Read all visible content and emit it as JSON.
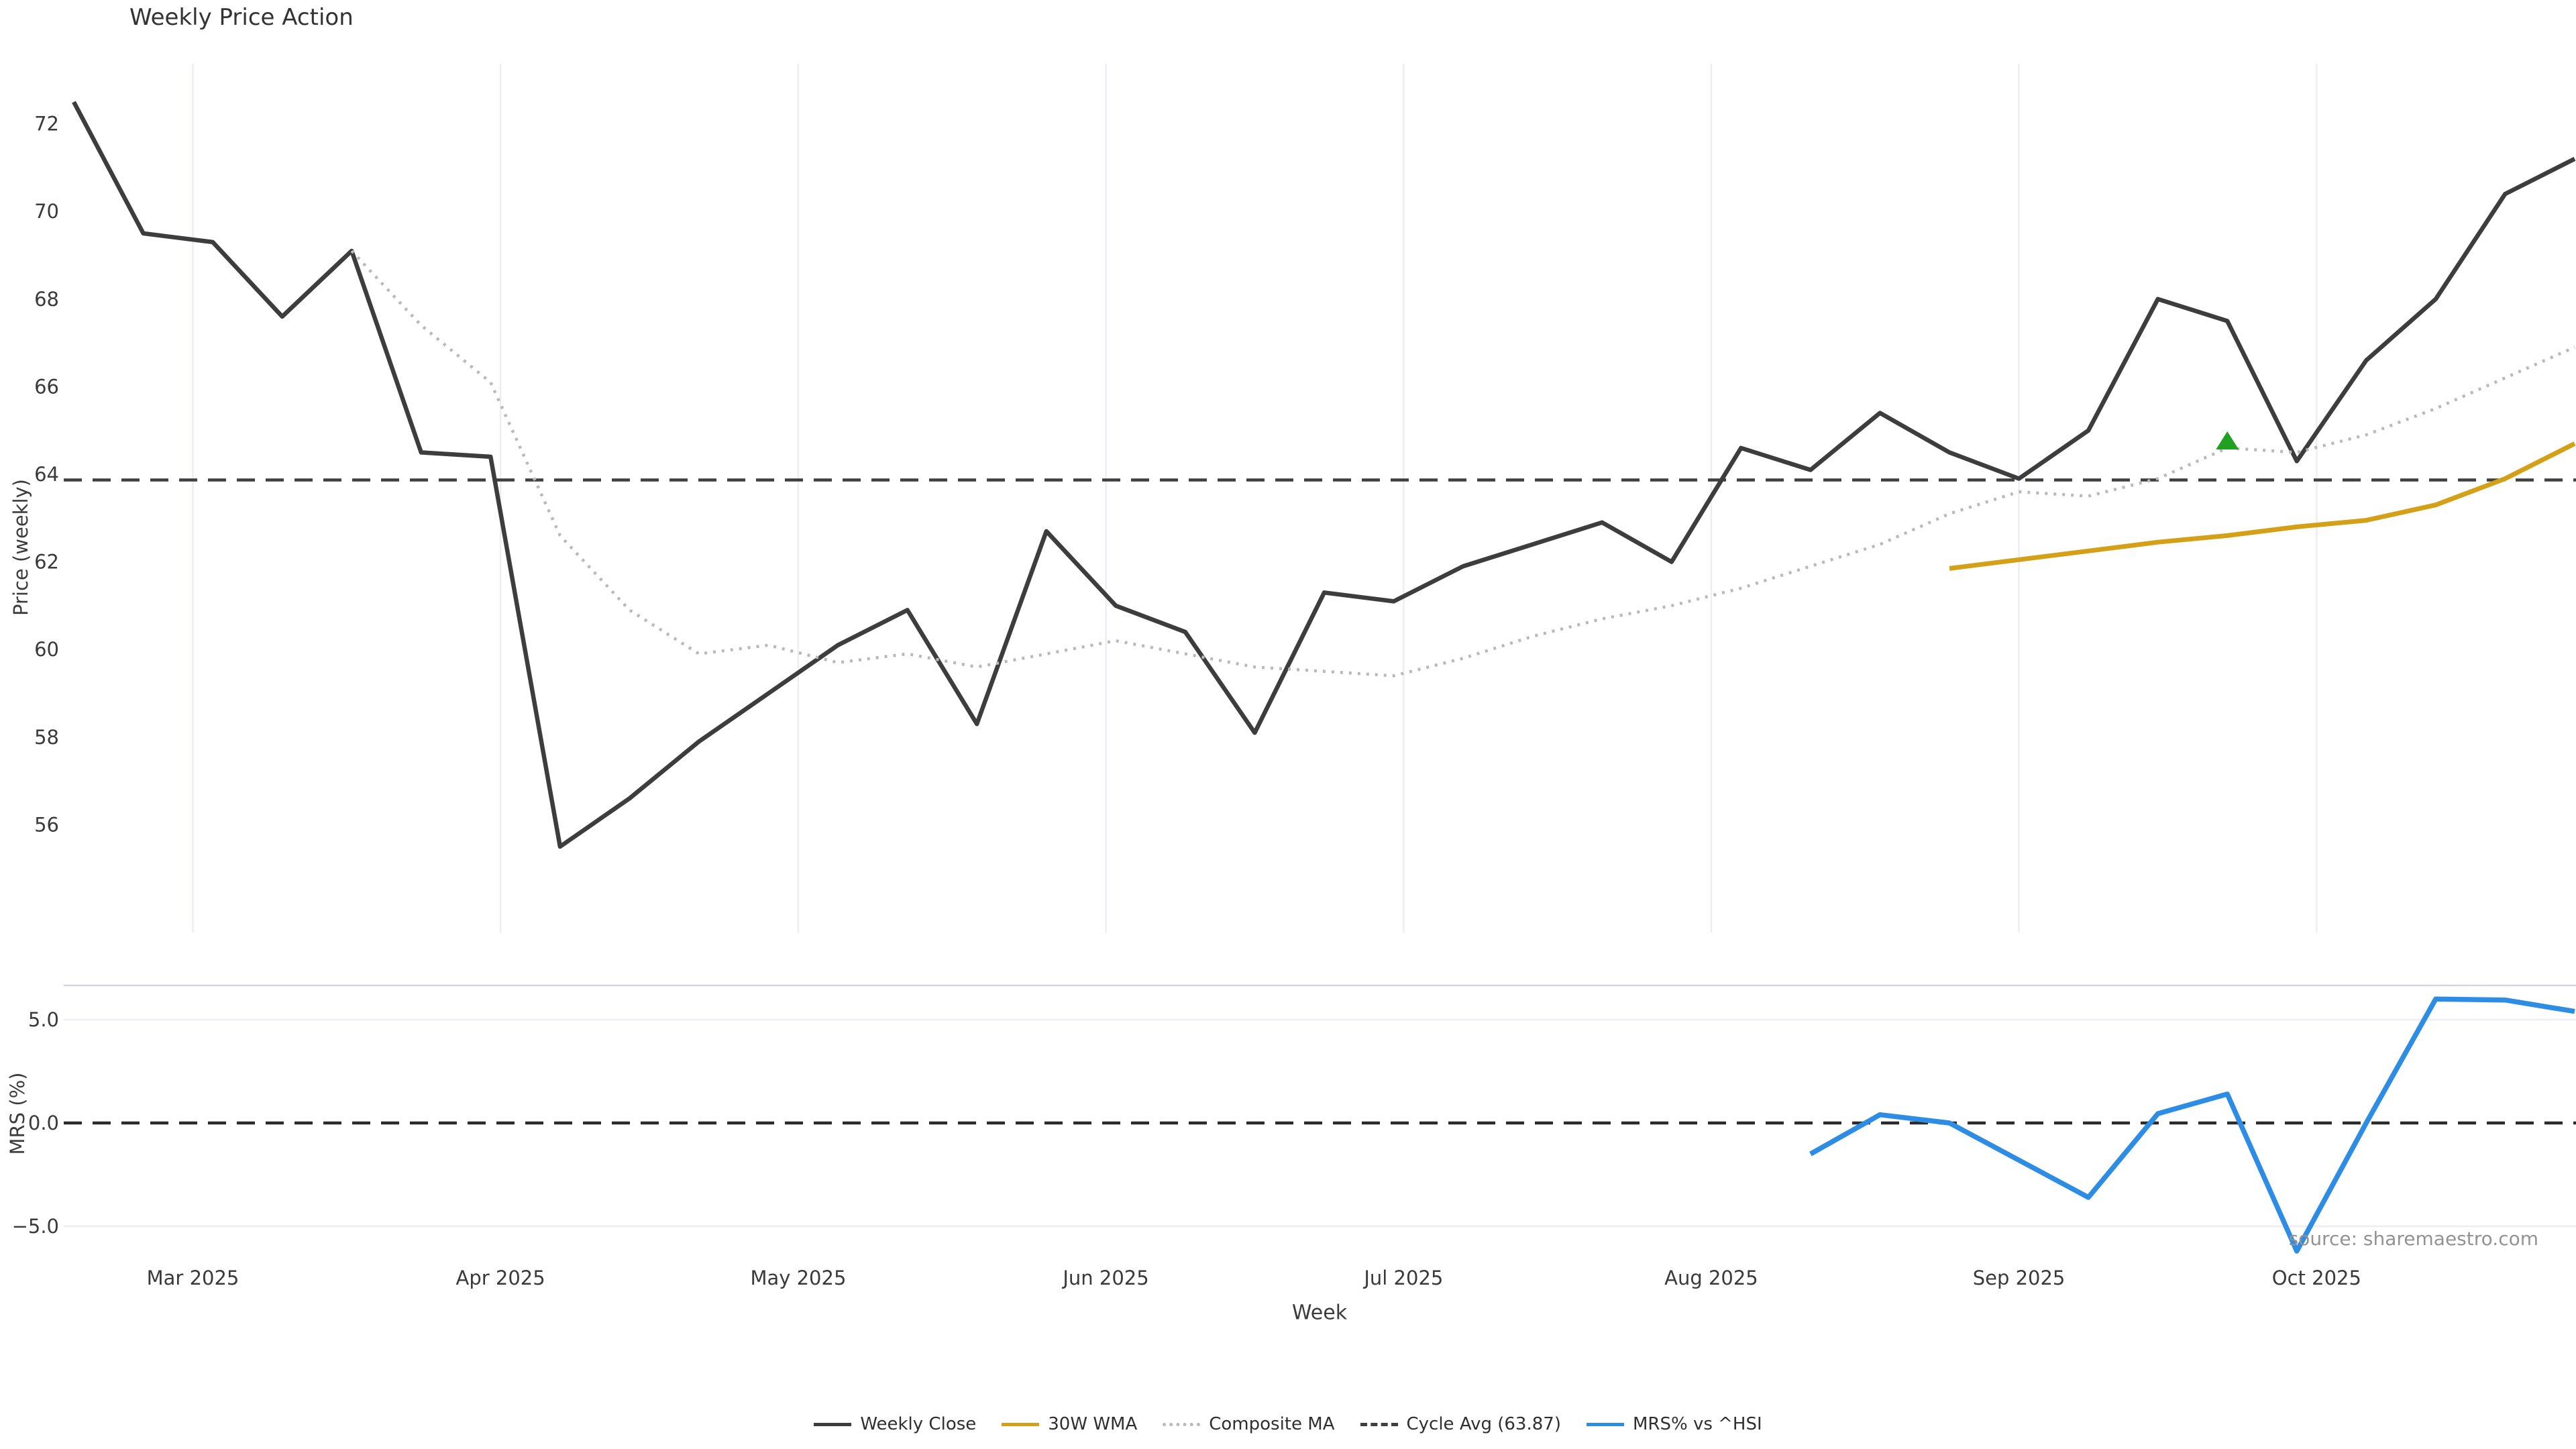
{
  "title": "Weekly Price Action",
  "source_note": "source: sharemaestro.com",
  "colors": {
    "weekly_close": "#3d3d3d",
    "wma_30w": "#d4a017",
    "composite_ma": "#b9b9bd",
    "cycle_avg": "#3f3f3f",
    "mrs": "#2d8de4",
    "signal_green": "#21a121",
    "gridline": "#edeef3",
    "panel_spine": "#d6d6de",
    "tick_text": "#3a3a3a"
  },
  "legend": [
    {
      "label": "Weekly Close",
      "color": "#3d3d3d",
      "style": "solid"
    },
    {
      "label": "30W WMA",
      "color": "#d4a017",
      "style": "solid"
    },
    {
      "label": "Composite MA",
      "color": "#b9b9bd",
      "style": "dotted"
    },
    {
      "label": "Cycle Avg (63.87)",
      "color": "#3f3f3f",
      "style": "dashed"
    },
    {
      "label": "MRS% vs ^HSI",
      "color": "#2d8de4",
      "style": "solid"
    }
  ],
  "chart_data": {
    "type": "line",
    "title": "Weekly Price Action",
    "xlabel": "Week",
    "x_start_date": "2025-02-17",
    "x_weeks": 37,
    "x_dates": [
      "2025-02-17",
      "2025-02-24",
      "2025-03-03",
      "2025-03-10",
      "2025-03-17",
      "2025-03-24",
      "2025-03-31",
      "2025-04-07",
      "2025-04-14",
      "2025-04-21",
      "2025-04-28",
      "2025-05-05",
      "2025-05-12",
      "2025-05-19",
      "2025-05-26",
      "2025-06-02",
      "2025-06-09",
      "2025-06-16",
      "2025-06-23",
      "2025-06-30",
      "2025-07-07",
      "2025-07-14",
      "2025-07-21",
      "2025-07-28",
      "2025-08-04",
      "2025-08-11",
      "2025-08-18",
      "2025-08-25",
      "2025-09-01",
      "2025-09-08",
      "2025-09-15",
      "2025-09-22",
      "2025-09-29",
      "2025-10-06",
      "2025-10-13",
      "2025-10-20",
      "2025-10-27"
    ],
    "month_ticks": [
      {
        "label": "Mar 2025",
        "day": 12
      },
      {
        "label": "Apr 2025",
        "day": 43
      },
      {
        "label": "May 2025",
        "day": 73
      },
      {
        "label": "Jun 2025",
        "day": 104
      },
      {
        "label": "Jul 2025",
        "day": 134
      },
      {
        "label": "Aug 2025",
        "day": 165
      },
      {
        "label": "Sep 2025",
        "day": 196
      },
      {
        "label": "Oct 2025",
        "day": 226
      }
    ],
    "total_days": 252,
    "price_panel": {
      "ylabel": "Price (weekly)",
      "ylim": [
        53.5,
        73.4
      ],
      "yticks": [
        72,
        70,
        68,
        66,
        64,
        62,
        60,
        58,
        56
      ],
      "grid": "vertical-months",
      "cycle_avg": 63.87,
      "series": [
        {
          "name": "Weekly Close",
          "style": "solid",
          "color": "#3d3d3d",
          "start_week": 0,
          "values": [
            72.5,
            69.5,
            69.3,
            67.6,
            69.1,
            64.5,
            64.4,
            55.5,
            56.6,
            57.9,
            59.0,
            60.1,
            60.9,
            58.3,
            62.7,
            61.0,
            60.4,
            58.1,
            61.3,
            61.1,
            61.9,
            62.4,
            62.9,
            62.0,
            64.6,
            64.1,
            65.4,
            64.5,
            63.9,
            65.0,
            68.0,
            67.5,
            64.3,
            66.6,
            68.0,
            70.4,
            71.2
          ]
        },
        {
          "name": "Composite MA",
          "style": "dotted",
          "color": "#b9b9bd",
          "start_week": 4,
          "values": [
            69.1,
            67.4,
            66.1,
            62.6,
            60.9,
            59.9,
            60.1,
            59.7,
            59.9,
            59.6,
            59.9,
            60.2,
            59.9,
            59.6,
            59.5,
            59.4,
            59.8,
            60.3,
            60.7,
            61.0,
            61.4,
            61.9,
            62.4,
            63.1,
            63.6,
            63.5,
            63.9,
            64.6,
            64.5,
            64.9,
            65.5,
            66.2,
            66.9
          ]
        },
        {
          "name": "30W WMA",
          "style": "solid",
          "color": "#d4a017",
          "start_week": 27,
          "values": [
            61.85,
            62.05,
            62.25,
            62.45,
            62.6,
            62.8,
            62.95,
            63.3,
            63.9,
            64.7
          ]
        }
      ],
      "signal_marker": {
        "shape": "triangle-up",
        "color": "#21a121",
        "week": 31,
        "price": 64.75
      }
    },
    "mrs_panel": {
      "ylabel": "MRS (%)",
      "ylim": [
        -6.7,
        6.7
      ],
      "ytick_values": [
        5,
        0,
        -5
      ],
      "ytick_labels": [
        "5.0",
        "0.0",
        "−5.0"
      ],
      "zero_line": 0.0,
      "series": [
        {
          "name": "MRS% vs ^HSI",
          "style": "solid",
          "color": "#2d8de4",
          "start_week": 25,
          "values": [
            -1.5,
            0.4,
            0.0,
            -1.8,
            -3.6,
            0.45,
            1.4,
            -6.2,
            0.0,
            6.0,
            5.95,
            5.4
          ]
        }
      ]
    }
  }
}
